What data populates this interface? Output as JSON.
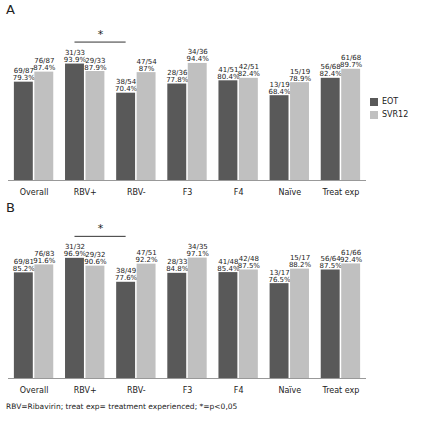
{
  "chart_data": [
    {
      "type": "bar",
      "title": "A",
      "categories": [
        "Overall",
        "RBV+",
        "RBV-",
        "F3",
        "F4",
        "Naïve",
        "Treat exp"
      ],
      "series": [
        {
          "name": "EOT",
          "color": "#595959",
          "values": [
            79.3,
            93.9,
            70.4,
            77.8,
            80.4,
            68.4,
            82.4
          ],
          "value_labels": [
            "69/87\n79.3%",
            "31/33\n93.9%",
            "38/54\n70.4%",
            "28/36\n77.8%",
            "41/51\n80.4%",
            "13/19\n68.4%",
            "56/68\n82.4%"
          ]
        },
        {
          "name": "SVR12",
          "color": "#c0c0c0",
          "values": [
            87.4,
            87.9,
            87,
            94.4,
            82.4,
            78.9,
            89.7
          ],
          "value_labels": [
            "76/87\n87.4%",
            "29/33\n87.9%",
            "47/54\n87%",
            "34/36\n94.4%",
            "42/51\n82.4%",
            "15/19\n78.9%",
            "61/68\n89.7%"
          ]
        }
      ],
      "ylim": [
        0,
        100
      ],
      "data_labels": true,
      "tick_labels": "x",
      "legend": "right",
      "annotations": [
        {
          "text": "*",
          "from": "RBV+",
          "to": "RBV-"
        }
      ]
    },
    {
      "type": "bar",
      "title": "B",
      "categories": [
        "Overall",
        "RBV+",
        "RBV-",
        "F3",
        "F4",
        "Naïve",
        "Treat exp"
      ],
      "series": [
        {
          "name": "EOT",
          "color": "#595959",
          "values": [
            85.2,
            96.9,
            77.6,
            84.8,
            85.4,
            76.5,
            87.5
          ],
          "value_labels": [
            "69/81\n85.2%",
            "31/32\n96.9%",
            "38/49\n77.6%",
            "28/33\n84.8%",
            "41/48\n85.4%",
            "13/17\n76.5%",
            "56/64\n87.5%"
          ]
        },
        {
          "name": "SVR12",
          "color": "#c0c0c0",
          "values": [
            91.6,
            90.6,
            92.2,
            97.1,
            87.5,
            88.2,
            92.4
          ],
          "value_labels": [
            "76/83\n91.6%",
            "29/32\n90.6%",
            "47/51\n92.2%",
            "34/35\n97.1%",
            "42/48\n87.5%",
            "15/17\n88.2%",
            "61/66\n92.4%"
          ]
        }
      ],
      "ylim": [
        0,
        100
      ],
      "data_labels": true,
      "tick_labels": "x",
      "annotations": [
        {
          "text": "*",
          "from": "RBV+",
          "to": "RBV-"
        }
      ]
    }
  ],
  "caption": "RBV=Ribavirin; treat exp= treatment experienced; *=p<0,05"
}
